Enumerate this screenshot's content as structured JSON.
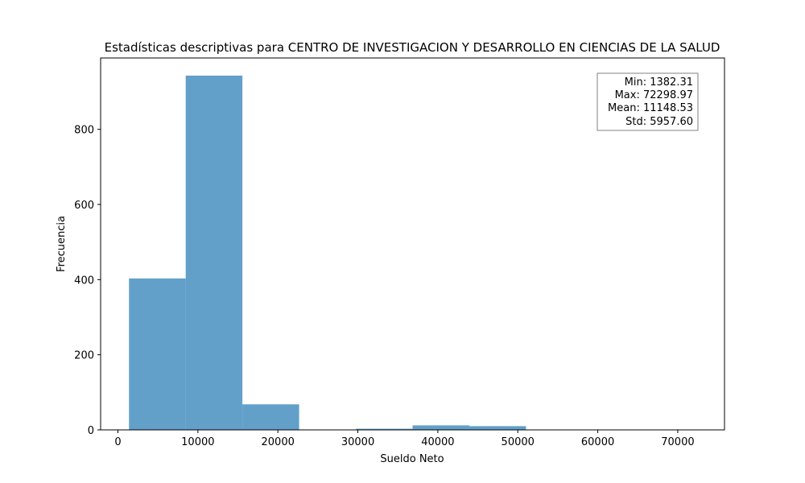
{
  "chart_data": {
    "type": "bar",
    "title": "Estadísticas descriptivas para CENTRO DE INVESTIGACION Y DESARROLLO EN CIENCIAS DE LA SALUD",
    "xlabel": "Sueldo Neto",
    "ylabel": "Frecuencia",
    "bin_edges": [
      1382.31,
      8473.98,
      15565.64,
      22657.31,
      29748.98,
      36840.64,
      43932.31,
      51023.98,
      58115.64,
      65207.31,
      72298.97
    ],
    "values": [
      403,
      943,
      68,
      0,
      3,
      12,
      10,
      1,
      0,
      1
    ],
    "xlim": [
      -2163.5,
      75844.8
    ],
    "ylim": [
      0,
      990
    ],
    "xticks": [
      0,
      10000,
      20000,
      30000,
      40000,
      50000,
      60000,
      70000
    ],
    "yticks": [
      0,
      200,
      400,
      600,
      800
    ],
    "bar_color": "#1f77b4",
    "bar_alpha": 0.7,
    "legend_position": "top-right",
    "stats": [
      "Min: 1382.31",
      "Max: 72298.97",
      "Mean: 11148.53",
      "Std: 5957.60"
    ]
  }
}
